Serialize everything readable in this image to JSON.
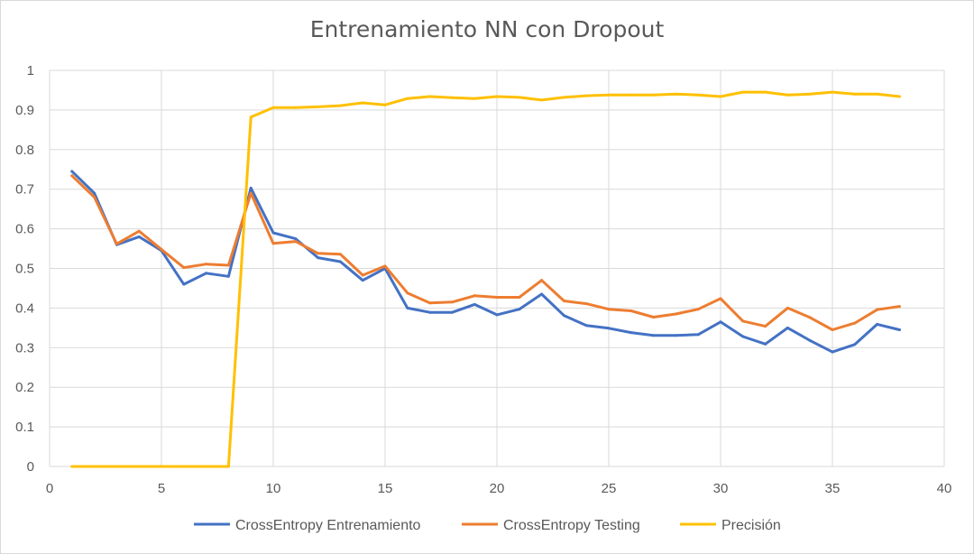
{
  "chart_data": {
    "type": "line",
    "title": "Entrenamiento NN con Dropout",
    "xlim": [
      0,
      40
    ],
    "ylim": [
      0,
      1
    ],
    "x_ticks": [
      "0",
      "5",
      "10",
      "15",
      "20",
      "25",
      "30",
      "35",
      "40"
    ],
    "y_ticks": [
      "0",
      "0.1",
      "0.2",
      "0.3",
      "0.4",
      "0.5",
      "0.6",
      "0.7",
      "0.8",
      "0.9",
      "1"
    ],
    "grid": true,
    "legend_position": "bottom",
    "x": [
      1,
      2,
      3,
      4,
      5,
      6,
      7,
      8,
      9,
      10,
      11,
      12,
      13,
      14,
      15,
      16,
      17,
      18,
      19,
      20,
      21,
      22,
      23,
      24,
      25,
      26,
      27,
      28,
      29,
      30,
      31,
      32,
      33,
      34,
      35,
      36,
      37,
      38
    ],
    "series": [
      {
        "name": "CrossEntropy Entrenamiento",
        "color": "#4472c4",
        "values": [
          0.745,
          0.69,
          0.56,
          0.58,
          0.545,
          0.46,
          0.488,
          0.48,
          0.703,
          0.59,
          0.575,
          0.527,
          0.517,
          0.47,
          0.5,
          0.4,
          0.389,
          0.389,
          0.409,
          0.383,
          0.397,
          0.435,
          0.381,
          0.356,
          0.349,
          0.338,
          0.331,
          0.331,
          0.333,
          0.365,
          0.328,
          0.309,
          0.35,
          0.318,
          0.289,
          0.308,
          0.359,
          0.345
        ]
      },
      {
        "name": "CrossEntropy Testing",
        "color": "#ed7d31",
        "values": [
          0.734,
          0.68,
          0.562,
          0.594,
          0.548,
          0.502,
          0.511,
          0.508,
          0.69,
          0.563,
          0.568,
          0.538,
          0.536,
          0.483,
          0.506,
          0.438,
          0.413,
          0.415,
          0.431,
          0.427,
          0.427,
          0.47,
          0.418,
          0.411,
          0.397,
          0.393,
          0.377,
          0.385,
          0.397,
          0.424,
          0.367,
          0.354,
          0.4,
          0.376,
          0.345,
          0.362,
          0.396,
          0.404
        ]
      },
      {
        "name": "Precisión",
        "color": "#ffc000",
        "values": [
          0,
          0,
          0,
          0,
          0,
          0,
          0,
          0,
          0.882,
          0.906,
          0.906,
          0.908,
          0.911,
          0.918,
          0.913,
          0.929,
          0.934,
          0.931,
          0.929,
          0.934,
          0.932,
          0.925,
          0.932,
          0.936,
          0.938,
          0.938,
          0.938,
          0.94,
          0.938,
          0.934,
          0.945,
          0.945,
          0.938,
          0.94,
          0.945,
          0.94,
          0.94,
          0.934
        ]
      }
    ]
  }
}
